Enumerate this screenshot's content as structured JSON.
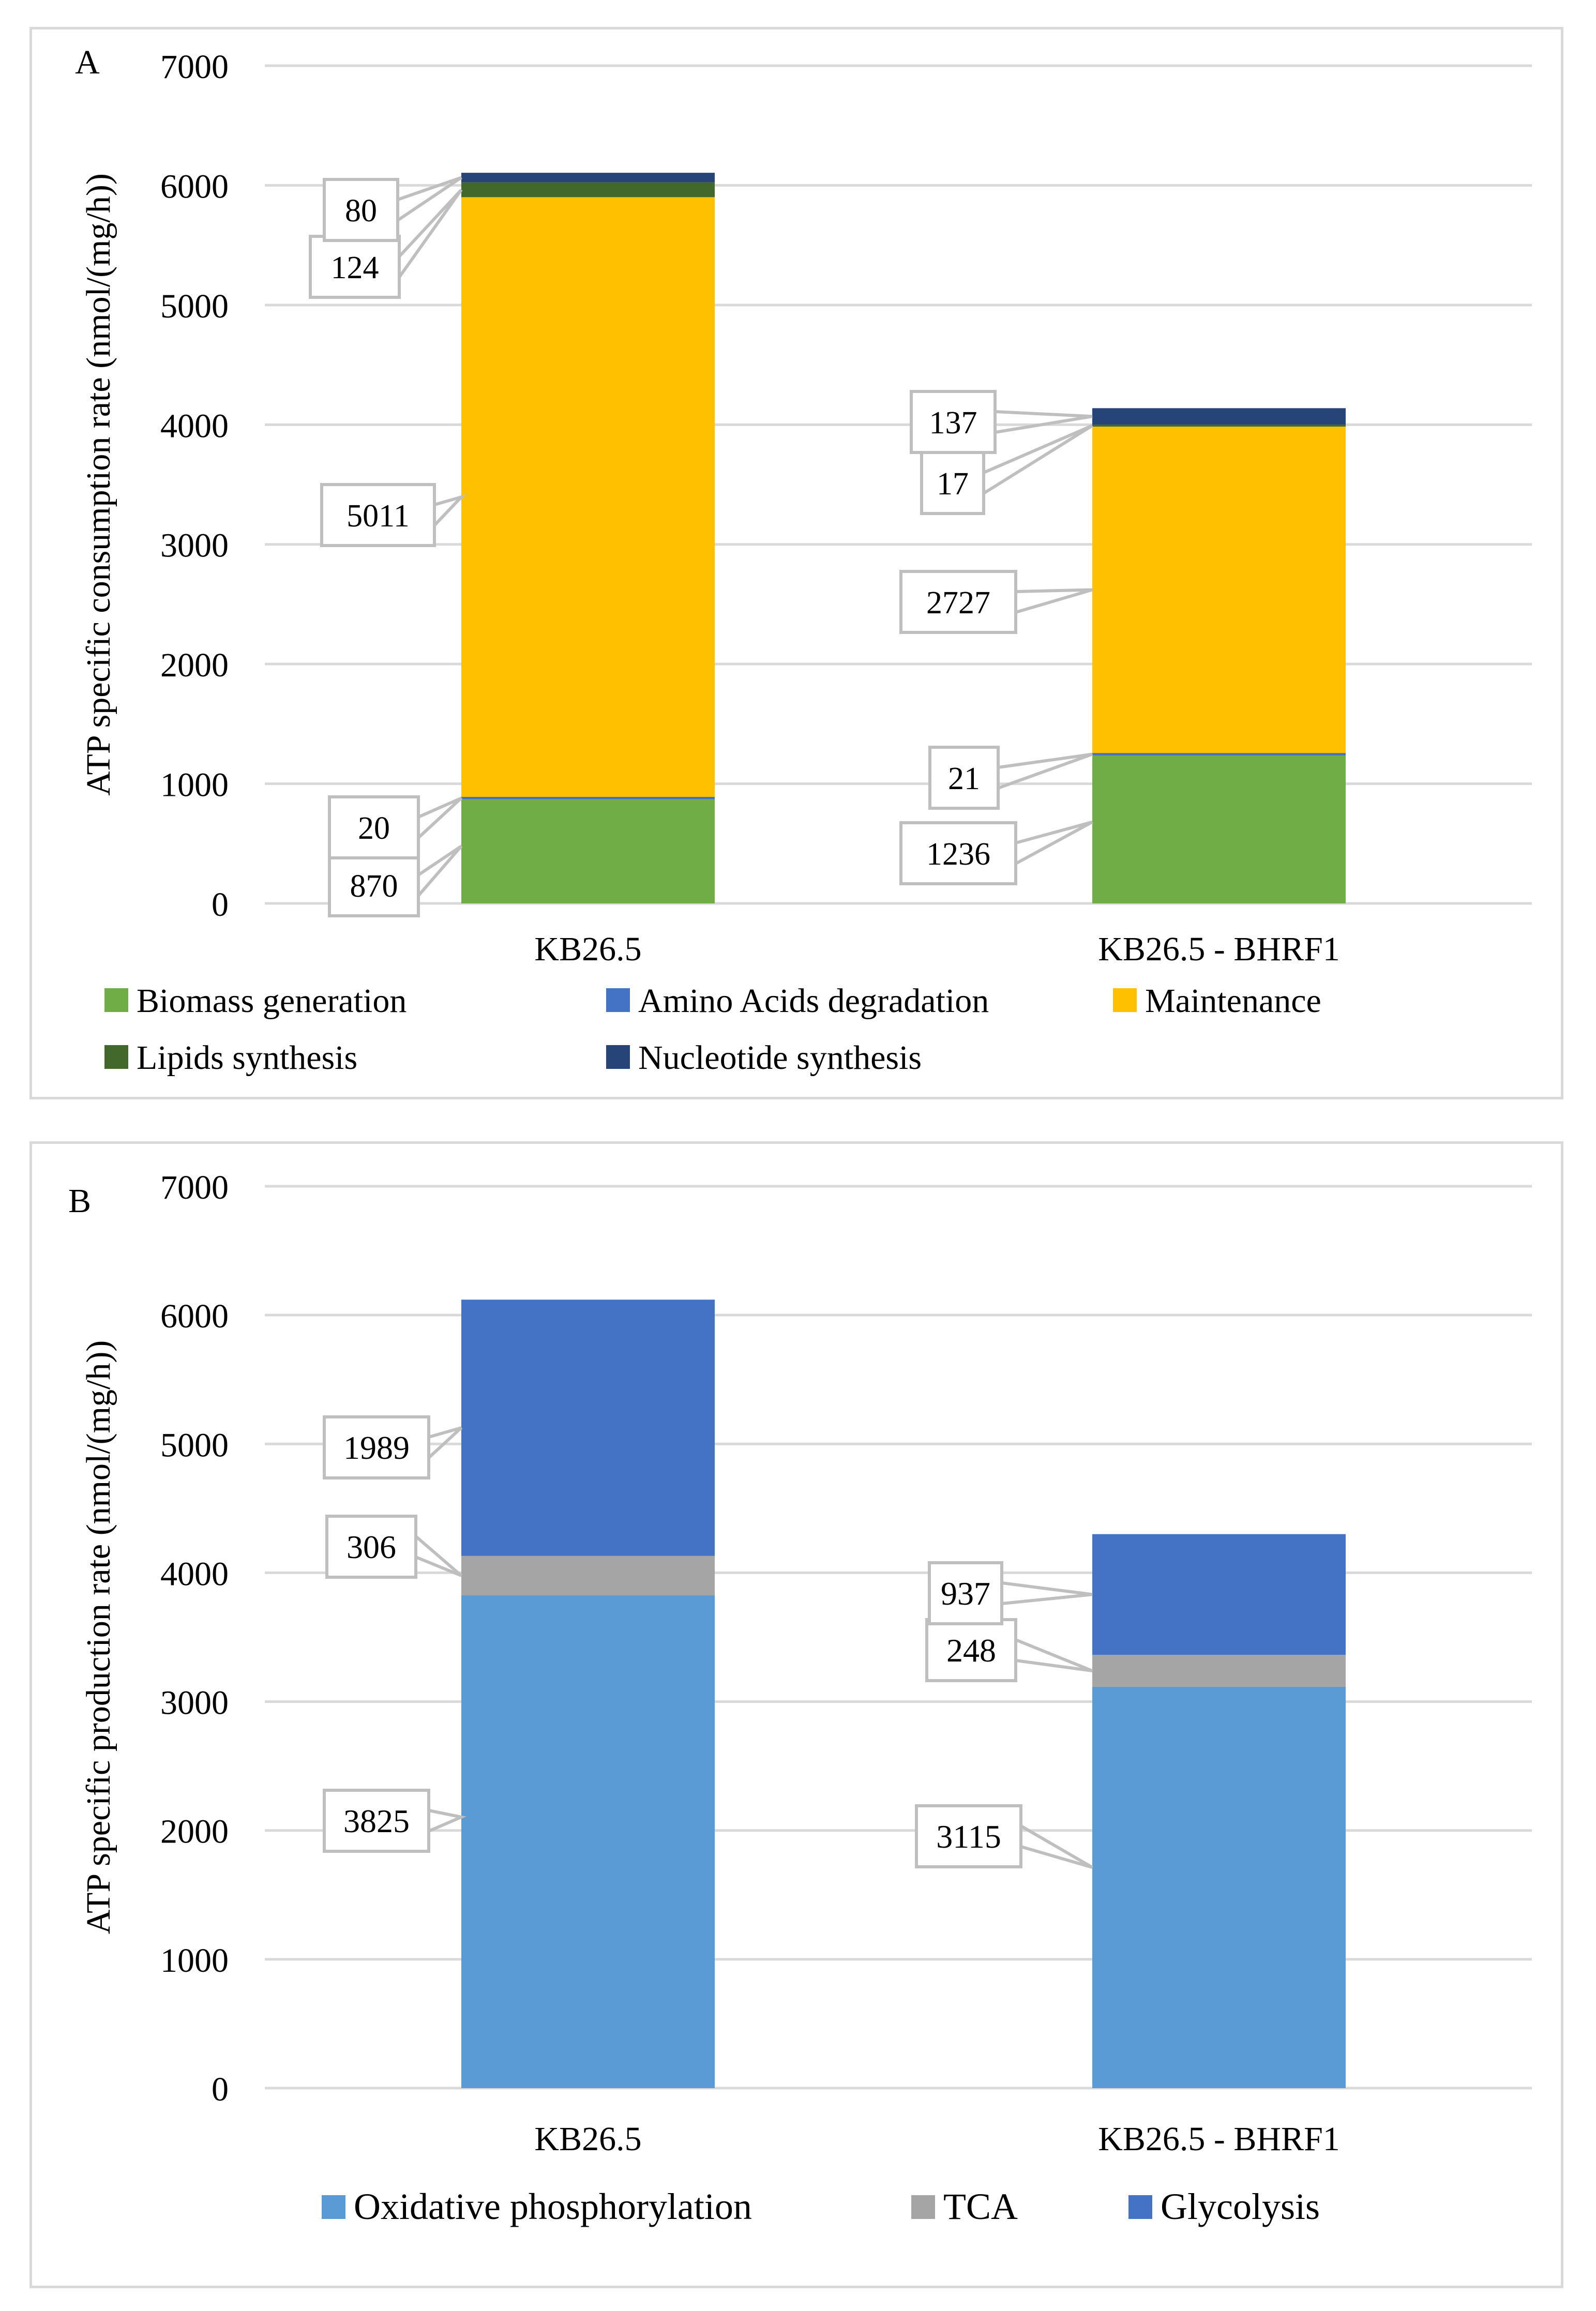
{
  "chart_data": [
    {
      "type": "bar",
      "stacked": true,
      "panel_label": "A",
      "title": "",
      "xlabel": "",
      "ylabel": "ATP specific consumption rate (nmol/(mg/h))",
      "ylim": [
        0,
        7000
      ],
      "yticks": [
        "0",
        "1000",
        "2000",
        "3000",
        "4000",
        "5000",
        "6000",
        "7000"
      ],
      "grid": true,
      "legend_position": "bottom",
      "categories": [
        "KB26.5",
        "KB26.5 - BHRF1"
      ],
      "series": [
        {
          "name": "Biomass generation",
          "color": "#70ad47",
          "values": [
            870,
            1236
          ]
        },
        {
          "name": "Amino Acids degradation",
          "color": "#4472c4",
          "values": [
            20,
            21
          ]
        },
        {
          "name": "Maintenance",
          "color": "#ffc000",
          "values": [
            5011,
            2727
          ]
        },
        {
          "name": "Lipids synthesis",
          "color": "#43682b",
          "values": [
            124,
            17
          ]
        },
        {
          "name": "Nucleotide synthesis",
          "color": "#264478",
          "values": [
            80,
            137
          ]
        }
      ],
      "legend_order": [
        "Biomass generation",
        "Amino Acids degradation",
        "Maintenance",
        "Lipids synthesis",
        "Nucleotide synthesis"
      ],
      "data_labels": [
        [
          "870",
          "1236"
        ],
        [
          "20",
          "21"
        ],
        [
          "5011",
          "2727"
        ],
        [
          "124",
          "17"
        ],
        [
          "80",
          "137"
        ]
      ]
    },
    {
      "type": "bar",
      "stacked": true,
      "panel_label": "B",
      "title": "",
      "xlabel": "",
      "ylabel": "ATP specific production rate (nmol/(mg/h))",
      "ylim": [
        0,
        7000
      ],
      "yticks": [
        "0",
        "1000",
        "2000",
        "3000",
        "4000",
        "5000",
        "6000",
        "7000"
      ],
      "grid": true,
      "legend_position": "bottom",
      "categories": [
        "KB26.5",
        "KB26.5 - BHRF1"
      ],
      "series": [
        {
          "name": "Oxidative phosphorylation",
          "color": "#5b9bd5",
          "values": [
            3825,
            3115
          ]
        },
        {
          "name": "TCA",
          "color": "#a5a5a5",
          "values": [
            306,
            248
          ]
        },
        {
          "name": "Glycolysis",
          "color": "#4472c4",
          "values": [
            1989,
            937
          ]
        }
      ],
      "legend_order": [
        "Oxidative phosphorylation",
        "TCA",
        "Glycolysis"
      ],
      "data_labels": [
        [
          "3825",
          "3115"
        ],
        [
          "306",
          "248"
        ],
        [
          "1989",
          "937"
        ]
      ]
    }
  ]
}
